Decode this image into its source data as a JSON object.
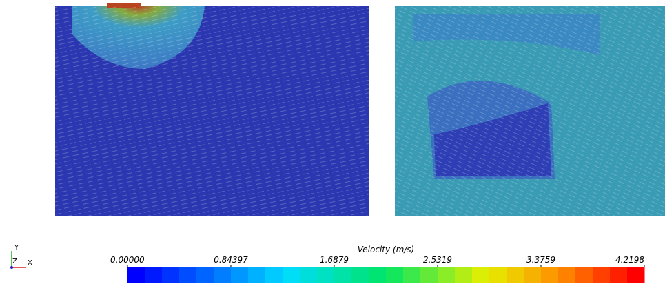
{
  "colorbar": {
    "title": "Velocity (m/s)",
    "range": [
      0,
      4.2198
    ],
    "ticks": [
      {
        "value": 0,
        "label": "0.00000"
      },
      {
        "value": 0.84397,
        "label": "0.84397"
      },
      {
        "value": 1.6879,
        "label": "1.6879"
      },
      {
        "value": 2.5319,
        "label": "2.5319"
      },
      {
        "value": 3.3759,
        "label": "3.3759"
      },
      {
        "value": 4.2198,
        "label": "4.2198"
      }
    ]
  },
  "axes": {
    "y": "Y",
    "z": "Z",
    "x": "X"
  }
}
